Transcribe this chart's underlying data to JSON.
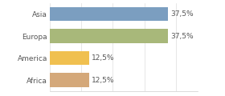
{
  "categories": [
    "Asia",
    "Europa",
    "America",
    "Africa"
  ],
  "values": [
    37.5,
    37.5,
    12.5,
    12.5
  ],
  "bar_colors": [
    "#7b9ec0",
    "#a8b87a",
    "#f0c050",
    "#d4a87a"
  ],
  "labels": [
    "37,5%",
    "37,5%",
    "12,5%",
    "12,5%"
  ],
  "xlim": [
    0,
    47
  ],
  "background_color": "#ffffff",
  "bar_height": 0.65,
  "label_fontsize": 6.5,
  "tick_fontsize": 6.5
}
